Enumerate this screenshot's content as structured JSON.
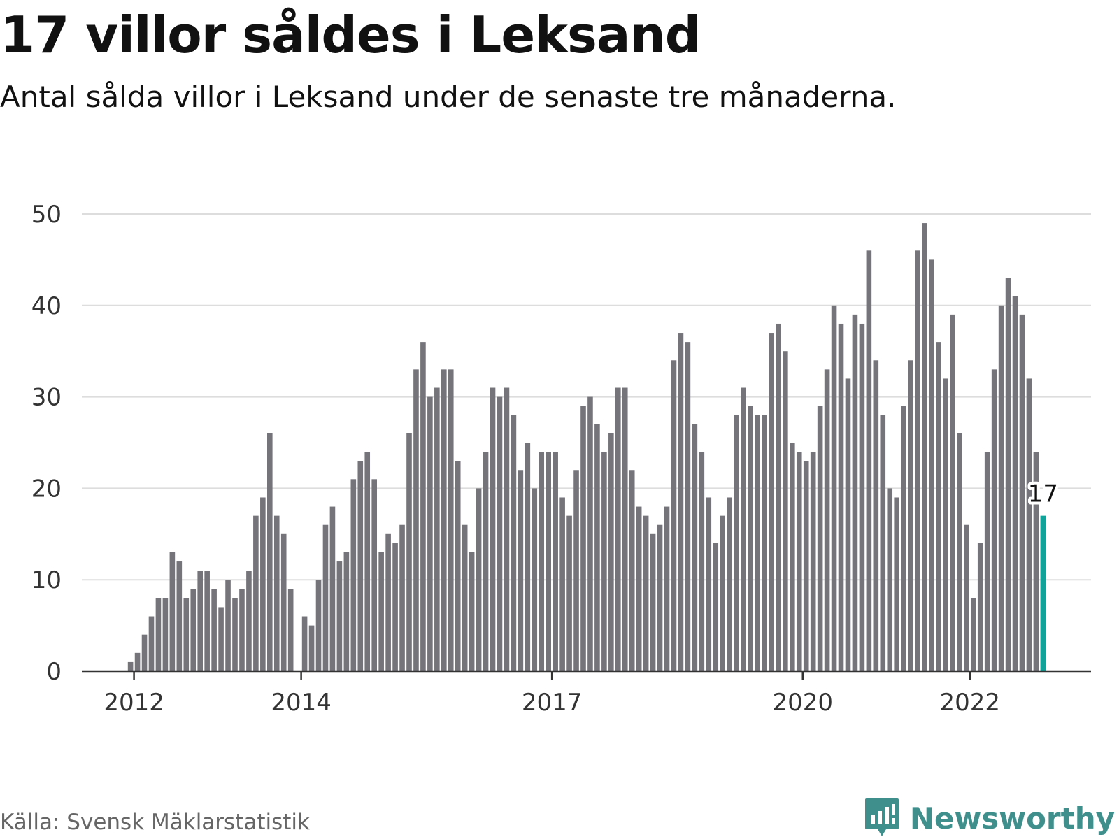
{
  "title": "17 villor såldes i Leksand",
  "subtitle": "Antal sålda villor i Leksand under de senaste tre månaderna.",
  "source": "Källa: Svensk Mäklarstatistik",
  "brand": {
    "name": "Newsworthy",
    "icon": "newsworthy-logo-icon"
  },
  "colors": {
    "bar": "#75747a",
    "highlight": "#12a29a",
    "grid": "#dddddd",
    "axis": "#333333",
    "brand": "#3f8f8d"
  },
  "chart_data": {
    "type": "bar",
    "title": "17 villor såldes i Leksand",
    "subtitle": "Antal sålda villor i Leksand under de senaste tre månaderna.",
    "xlabel": "",
    "ylabel": "",
    "ylim": [
      0,
      50
    ],
    "yticks": [
      0,
      10,
      20,
      30,
      40,
      50
    ],
    "grid": true,
    "x_start": "2011-12",
    "x_end": "2022-12",
    "interval": "month",
    "xticks": [
      {
        "label": "2012",
        "at": "2012-01"
      },
      {
        "label": "2014",
        "at": "2014-01"
      },
      {
        "label": "2017",
        "at": "2017-01"
      },
      {
        "label": "2020",
        "at": "2020-01"
      },
      {
        "label": "2022",
        "at": "2022-01"
      }
    ],
    "values": [
      1,
      2,
      4,
      6,
      8,
      8,
      13,
      12,
      8,
      9,
      11,
      11,
      9,
      7,
      10,
      8,
      9,
      11,
      17,
      19,
      26,
      17,
      15,
      9,
      0,
      6,
      5,
      10,
      16,
      18,
      12,
      13,
      21,
      23,
      24,
      21,
      13,
      15,
      14,
      16,
      26,
      33,
      36,
      30,
      31,
      33,
      33,
      23,
      16,
      13,
      20,
      24,
      31,
      30,
      31,
      28,
      22,
      25,
      20,
      24,
      24,
      24,
      19,
      17,
      22,
      29,
      30,
      27,
      24,
      26,
      31,
      31,
      22,
      18,
      17,
      15,
      16,
      18,
      34,
      37,
      36,
      27,
      24,
      19,
      14,
      17,
      19,
      28,
      31,
      29,
      28,
      28,
      37,
      38,
      35,
      25,
      24,
      23,
      24,
      29,
      33,
      40,
      38,
      32,
      39,
      38,
      46,
      34,
      28,
      20,
      19,
      29,
      34,
      46,
      49,
      45,
      36,
      32,
      39,
      26,
      16,
      8,
      14,
      24,
      33,
      40,
      43,
      41,
      39,
      32,
      24,
      17
    ],
    "highlight_label": "17"
  }
}
